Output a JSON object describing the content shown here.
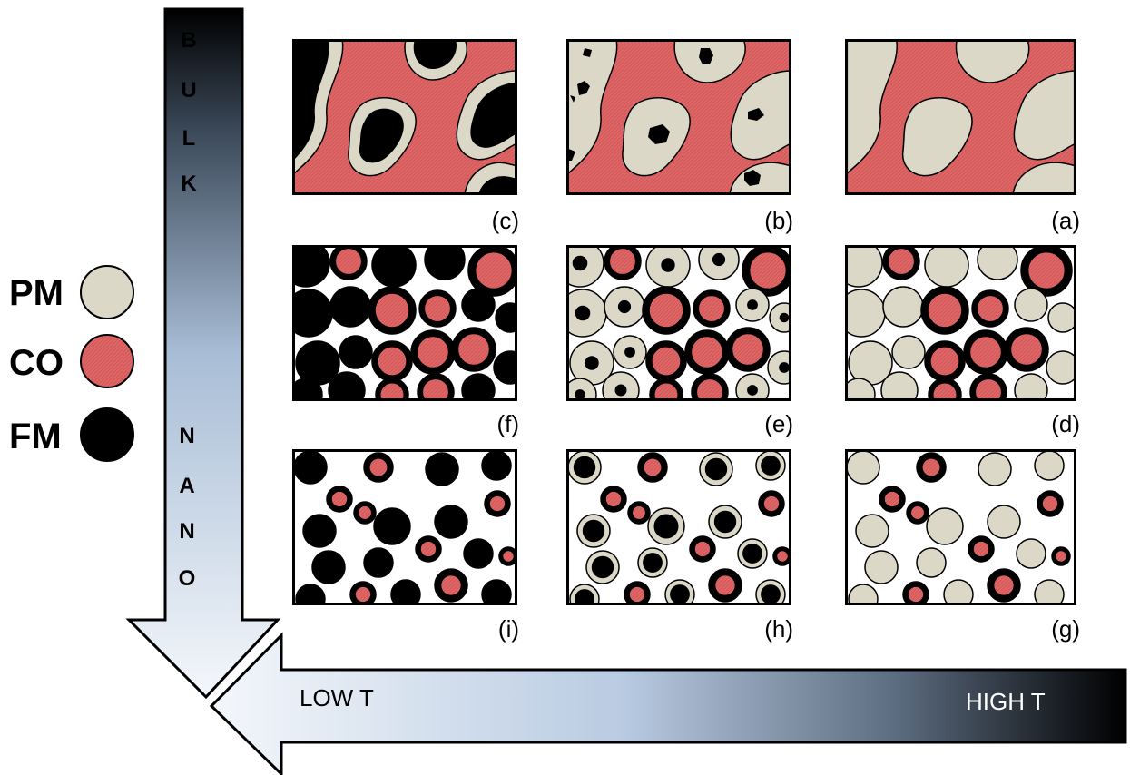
{
  "legend": [
    {
      "label": "PM",
      "color": "#dcd8c8",
      "icon": "paramagnetic-phase-circle"
    },
    {
      "label": "CO",
      "color": "#e06666",
      "icon": "charge-ordered-phase-circle"
    },
    {
      "label": "FM",
      "color": "#000000",
      "icon": "ferromagnetic-phase-circle"
    }
  ],
  "size_axis": {
    "top_label_letters": [
      "B",
      "U",
      "L",
      "K"
    ],
    "bottom_label_letters": [
      "N",
      "A",
      "N",
      "O"
    ]
  },
  "temperature_axis": {
    "low_label": "LOW T",
    "high_label": "HIGH T"
  },
  "panels": [
    {
      "label": "(c)"
    },
    {
      "label": "(b)"
    },
    {
      "label": "(a)"
    },
    {
      "label": "(f)"
    },
    {
      "label": "(e)"
    },
    {
      "label": "(d)"
    },
    {
      "label": "(i)"
    },
    {
      "label": "(h)"
    },
    {
      "label": "(g)"
    }
  ],
  "colors": {
    "pm": "#dcd8c8",
    "co": "#e06666",
    "fm": "#000000"
  }
}
